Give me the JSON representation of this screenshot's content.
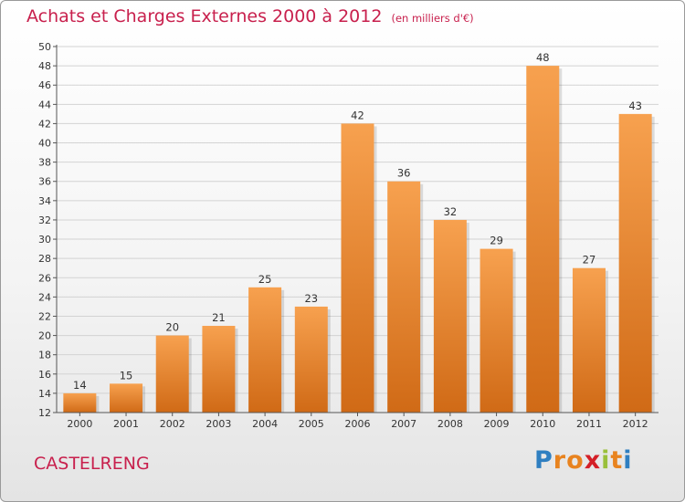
{
  "header": {
    "title": "Achats et Charges Externes 2000 à 2012",
    "unit": "(en milliers d'€)"
  },
  "footer": {
    "commune": "CASTELRENG",
    "logo_letters": [
      "P",
      "r",
      "o",
      "x",
      "i",
      "t",
      "i"
    ],
    "logo_colors": [
      "#2f7fc1",
      "#e8831f",
      "#e8831f",
      "#d41f27",
      "#9ac03b",
      "#e8831f",
      "#2f7fc1"
    ]
  },
  "colors": {
    "title": "#c8204d",
    "bar_light": "#f7a14f",
    "bar_dark": "#d06a16",
    "grid": "#d3d3d3"
  },
  "chart_data": {
    "type": "bar",
    "title": "Achats et Charges Externes 2000 à 2012",
    "subtitle": "(en milliers d'€)",
    "xlabel": "",
    "ylabel": "",
    "categories": [
      "2000",
      "2001",
      "2002",
      "2003",
      "2004",
      "2005",
      "2006",
      "2007",
      "2008",
      "2009",
      "2010",
      "2011",
      "2012"
    ],
    "values": [
      14,
      15,
      20,
      21,
      25,
      23,
      42,
      36,
      32,
      29,
      48,
      27,
      43
    ],
    "ylim": [
      12,
      50
    ],
    "yticks": [
      12,
      14,
      16,
      18,
      20,
      22,
      24,
      26,
      28,
      30,
      32,
      34,
      36,
      38,
      40,
      42,
      44,
      46,
      48,
      50
    ],
    "grid": true,
    "data_labels": true
  }
}
